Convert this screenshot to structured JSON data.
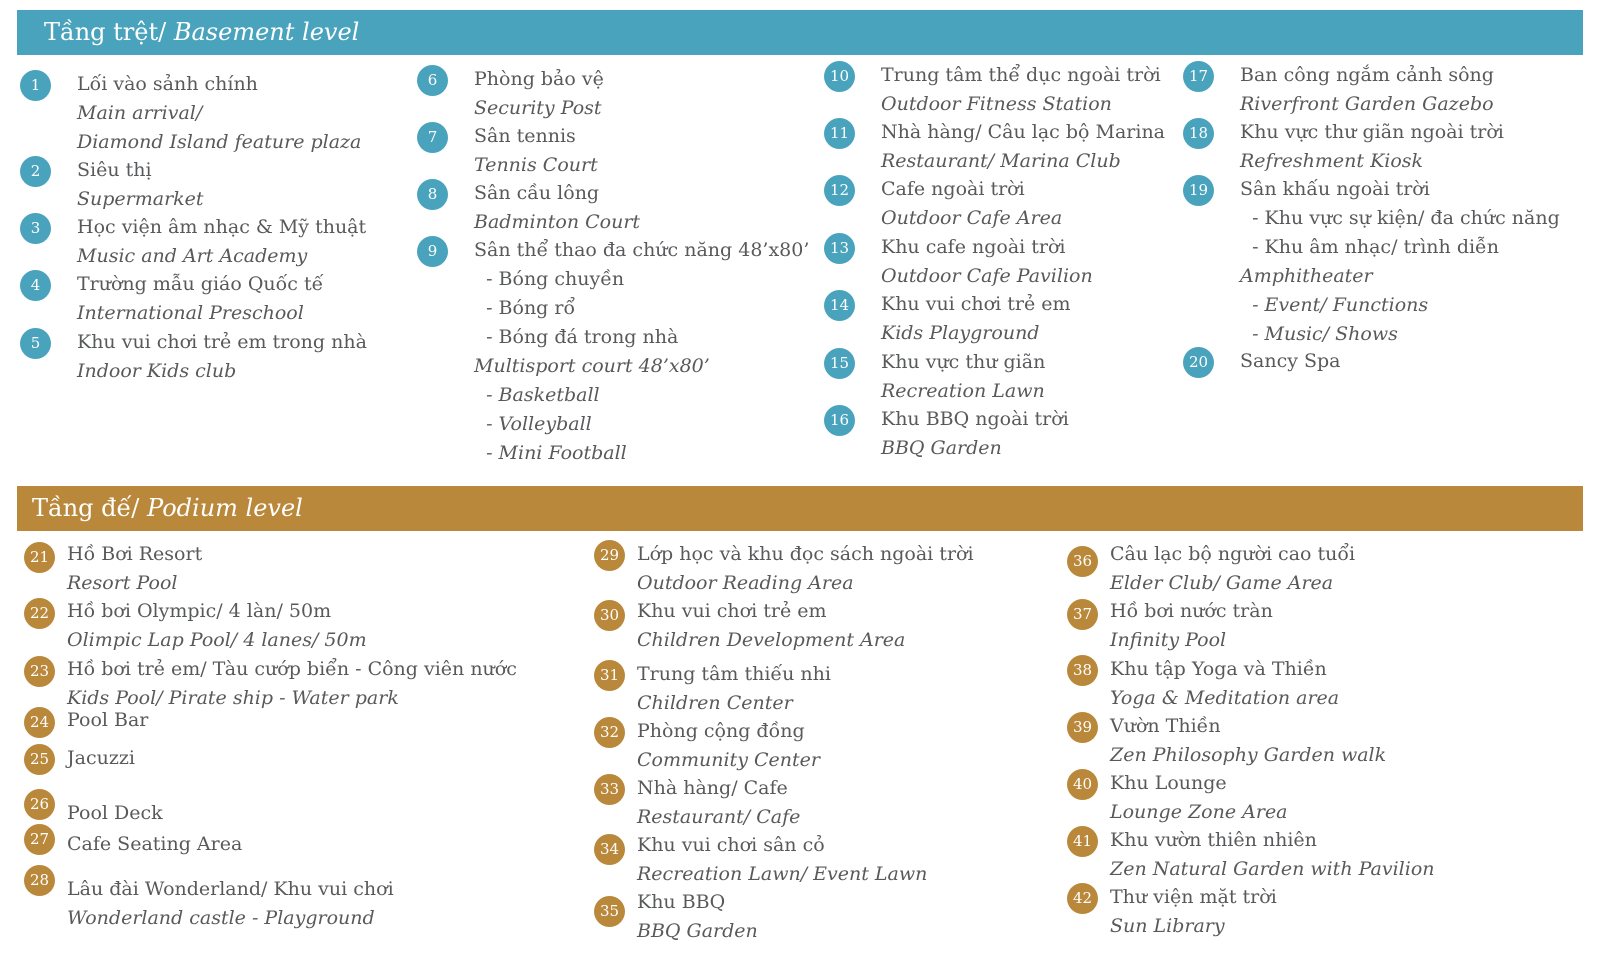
{
  "basement": {
    "title_vi": "Tầng trệt/",
    "title_en": "Basement level",
    "items": [
      {
        "num": "1",
        "lines": [
          [
            "Lối vào sảnh chính",
            0
          ],
          [
            "Main arrival/",
            1
          ],
          [
            "Diamond Island feature plaza",
            1
          ]
        ]
      },
      {
        "num": "2",
        "lines": [
          [
            "Siêu thị",
            0
          ],
          [
            "Supermarket",
            1
          ]
        ]
      },
      {
        "num": "3",
        "lines": [
          [
            "Học viện âm nhạc & Mỹ thuật",
            0
          ],
          [
            "Music and Art Academy",
            1
          ]
        ]
      },
      {
        "num": "4",
        "lines": [
          [
            "Trường mẫu giáo Quốc tế",
            0
          ],
          [
            "International Preschool",
            1
          ]
        ]
      },
      {
        "num": "5",
        "lines": [
          [
            "Khu vui chơi trẻ em trong nhà",
            0
          ],
          [
            "Indoor Kids club",
            1
          ]
        ]
      },
      {
        "num": "6",
        "lines": [
          [
            "Phòng bảo vệ",
            0
          ],
          [
            "Security Post",
            1
          ]
        ]
      },
      {
        "num": "7",
        "lines": [
          [
            "Sân tennis",
            0
          ],
          [
            "Tennis Court",
            1
          ]
        ]
      },
      {
        "num": "8",
        "lines": [
          [
            "Sân cầu lông",
            0
          ],
          [
            "Badminton Court",
            1
          ]
        ]
      },
      {
        "num": "9",
        "lines": [
          [
            "Sân thể thao đa chức năng 48’x80’",
            0
          ],
          [
            "  - Bóng chuyền",
            0
          ],
          [
            "  - Bóng rổ",
            0
          ],
          [
            "  - Bóng đá trong nhà",
            0
          ],
          [
            "Multisport court 48’x80’",
            1
          ],
          [
            "  - Basketball",
            1
          ],
          [
            "  - Volleyball",
            1
          ],
          [
            "  - Mini Football",
            1
          ]
        ]
      },
      {
        "num": "10",
        "lines": [
          [
            "Trung tâm thể dục ngoài trời",
            0
          ],
          [
            "Outdoor Fitness Station",
            1
          ]
        ]
      },
      {
        "num": "11",
        "lines": [
          [
            "Nhà hàng/ Câu lạc bộ Marina",
            0
          ],
          [
            "Restaurant/ Marina Club",
            1
          ]
        ]
      },
      {
        "num": "12",
        "lines": [
          [
            "Cafe ngoài trời",
            0
          ],
          [
            "Outdoor Cafe Area",
            1
          ]
        ]
      },
      {
        "num": "13",
        "lines": [
          [
            "Khu cafe ngoài trời",
            0
          ],
          [
            "Outdoor Cafe Pavilion",
            1
          ]
        ]
      },
      {
        "num": "14",
        "lines": [
          [
            "Khu vui chơi trẻ em",
            0
          ],
          [
            "Kids Playground",
            1
          ]
        ]
      },
      {
        "num": "15",
        "lines": [
          [
            "Khu vực thư giãn",
            0
          ],
          [
            "Recreation Lawn",
            1
          ]
        ]
      },
      {
        "num": "16",
        "lines": [
          [
            "Khu BBQ ngoài trời",
            0
          ],
          [
            "BBQ Garden",
            1
          ]
        ]
      },
      {
        "num": "17",
        "lines": [
          [
            "Ban công ngắm cảnh sông",
            0
          ],
          [
            "Riverfront Garden Gazebo",
            1
          ]
        ]
      },
      {
        "num": "18",
        "lines": [
          [
            "Khu vực thư giãn ngoài trời",
            0
          ],
          [
            "Refreshment Kiosk",
            1
          ]
        ]
      },
      {
        "num": "19",
        "lines": [
          [
            "Sân khấu ngoài trời",
            0
          ],
          [
            "  - Khu vực sự kiện/ đa chức năng",
            0
          ],
          [
            "  - Khu âm nhạc/ trình diễn",
            0
          ],
          [
            "Amphitheater",
            1
          ],
          [
            "  - Event/ Functions",
            1
          ],
          [
            "  - Music/ Shows",
            1
          ]
        ]
      },
      {
        "num": "20",
        "lines": [
          [
            "Sancy Spa",
            0
          ]
        ]
      }
    ]
  },
  "podium": {
    "title_vi": "Tầng đế/",
    "title_en": "Podium level",
    "items": [
      {
        "num": "21",
        "lines": [
          [
            "Hồ Bơi Resort",
            0
          ],
          [
            "Resort Pool",
            1
          ]
        ]
      },
      {
        "num": "22",
        "lines": [
          [
            "Hồ bơi Olympic/ 4 làn/ 50m",
            0
          ],
          [
            "Olimpic Lap Pool/ 4 lanes/ 50m",
            1
          ]
        ]
      },
      {
        "num": "23",
        "lines": [
          [
            "Hồ bơi trẻ em/ Tàu cướp biển - Công viên nước",
            0
          ],
          [
            "Kids Pool/ Pirate ship - Water park",
            1
          ]
        ]
      },
      {
        "num": "24",
        "lines": [
          [
            "Pool Bar",
            0
          ]
        ]
      },
      {
        "num": "25",
        "lines": [
          [
            "Jacuzzi",
            0
          ]
        ]
      },
      {
        "num": "26",
        "lines": [
          [
            "Pool Deck",
            0
          ]
        ]
      },
      {
        "num": "27",
        "lines": [
          [
            "Cafe Seating Area",
            0
          ]
        ]
      },
      {
        "num": "28",
        "lines": [
          [
            "Lâu đài Wonderland/ Khu vui chơi",
            0
          ],
          [
            "Wonderland castle - Playground",
            1
          ]
        ]
      },
      {
        "num": "29",
        "lines": [
          [
            "Lớp học và khu đọc sách ngoài trời",
            0
          ],
          [
            "Outdoor Reading Area",
            1
          ]
        ]
      },
      {
        "num": "30",
        "lines": [
          [
            "Khu vui chơi trẻ em",
            0
          ],
          [
            "Children Development Area",
            1
          ]
        ]
      },
      {
        "num": "31",
        "lines": [
          [
            "Trung tâm thiếu nhi",
            0
          ],
          [
            "Children Center",
            1
          ]
        ]
      },
      {
        "num": "32",
        "lines": [
          [
            "Phòng cộng đồng",
            0
          ],
          [
            "Community Center",
            1
          ]
        ]
      },
      {
        "num": "33",
        "lines": [
          [
            "Nhà hàng/ Cafe",
            0
          ],
          [
            "Restaurant/ Cafe",
            1
          ]
        ]
      },
      {
        "num": "34",
        "lines": [
          [
            "Khu vui chơi sân cỏ",
            0
          ],
          [
            "Recreation Lawn/ Event Lawn",
            1
          ]
        ]
      },
      {
        "num": "35",
        "lines": [
          [
            "Khu BBQ",
            0
          ],
          [
            "BBQ Garden",
            1
          ]
        ]
      },
      {
        "num": "36",
        "lines": [
          [
            "Câu lạc bộ người cao tuổi",
            0
          ],
          [
            "Elder Club/ Game Area",
            1
          ]
        ]
      },
      {
        "num": "37",
        "lines": [
          [
            "Hồ bơi nước tràn",
            0
          ],
          [
            "Infinity Pool",
            1
          ]
        ]
      },
      {
        "num": "38",
        "lines": [
          [
            "Khu tập Yoga và Thiền",
            0
          ],
          [
            "Yoga & Meditation area",
            1
          ]
        ]
      },
      {
        "num": "39",
        "lines": [
          [
            "Vườn Thiền",
            0
          ],
          [
            "Zen Philosophy Garden walk",
            1
          ]
        ]
      },
      {
        "num": "40",
        "lines": [
          [
            "Khu Lounge",
            0
          ],
          [
            "Lounge Zone Area",
            1
          ]
        ]
      },
      {
        "num": "41",
        "lines": [
          [
            "Khu vườn thiên nhiên",
            0
          ],
          [
            "Zen Natural Garden with Pavilion",
            1
          ]
        ]
      },
      {
        "num": "42",
        "lines": [
          [
            "Thư viện mặt trời",
            0
          ],
          [
            "Sun Library",
            1
          ]
        ]
      }
    ]
  },
  "colors": {
    "basement": "#4aa3bd",
    "podium": "#b9883a",
    "text": "#58595b"
  }
}
